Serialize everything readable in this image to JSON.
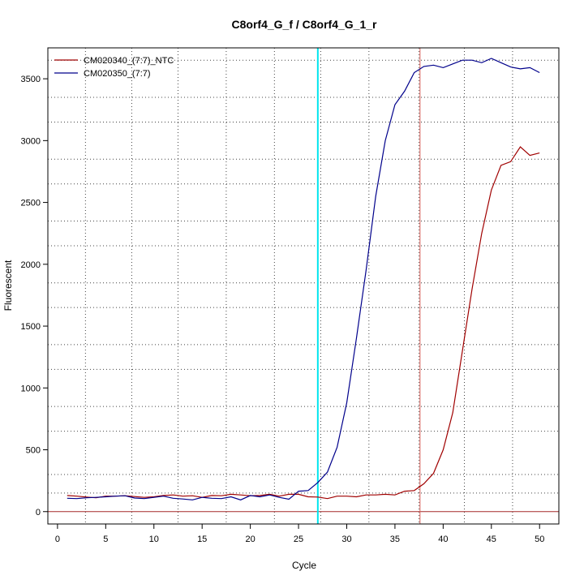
{
  "chart_data": {
    "type": "line",
    "title": "C8orf4_G_f / C8orf4_G_1_r",
    "xlabel": "Cycle",
    "ylabel": "Fluorescent",
    "xlim": [
      -1,
      52
    ],
    "ylim": [
      -100,
      3750
    ],
    "x_ticks": [
      0,
      5,
      10,
      15,
      20,
      25,
      30,
      35,
      40,
      45,
      50
    ],
    "y_ticks": [
      0,
      500,
      1000,
      1500,
      2000,
      2500,
      3000,
      3500
    ],
    "vertical_grid_x": [
      2.9,
      7.7,
      12.5,
      17.5,
      22.5,
      27.3,
      32.3,
      37.5,
      42.2,
      47.2
    ],
    "horizontal_grid_y": [
      150,
      300,
      650,
      850,
      1150,
      1350,
      1650,
      1850,
      2150,
      2350,
      2650,
      2850,
      3150,
      3350,
      3650
    ],
    "grid": true,
    "legend_position": "top-left",
    "threshold_lines": [
      {
        "x": 27.0,
        "color": "#00e5ee"
      },
      {
        "x": 37.6,
        "color": "#d9605a"
      }
    ],
    "baseline": {
      "y": 0,
      "color": "#a52a2a"
    },
    "series": [
      {
        "name": "CM020340_(7:7)_NTC",
        "color": "#a00000",
        "x": [
          1,
          2,
          3,
          4,
          5,
          6,
          7,
          8,
          9,
          10,
          11,
          12,
          13,
          14,
          15,
          16,
          17,
          18,
          19,
          20,
          21,
          22,
          23,
          24,
          25,
          26,
          27,
          28,
          29,
          30,
          31,
          32,
          33,
          34,
          35,
          36,
          37,
          38,
          39,
          40,
          41,
          42,
          43,
          44,
          45,
          46,
          47,
          48,
          49,
          50
        ],
        "values": [
          130,
          125,
          118,
          112,
          125,
          125,
          128,
          122,
          115,
          120,
          130,
          135,
          125,
          128,
          115,
          130,
          128,
          140,
          135,
          128,
          130,
          140,
          125,
          140,
          140,
          120,
          118,
          105,
          125,
          125,
          120,
          135,
          135,
          140,
          135,
          165,
          170,
          225,
          310,
          500,
          800,
          1300,
          1800,
          2250,
          2600,
          2800,
          2830,
          2950,
          2880,
          2900
        ]
      },
      {
        "name": "CM020350_(7:7)",
        "color": "#00008b",
        "x": [
          1,
          2,
          3,
          4,
          5,
          6,
          7,
          8,
          9,
          10,
          11,
          12,
          13,
          14,
          15,
          16,
          17,
          18,
          19,
          20,
          21,
          22,
          23,
          24,
          25,
          26,
          27,
          28,
          29,
          30,
          31,
          32,
          33,
          34,
          35,
          36,
          37,
          38,
          39,
          40,
          41,
          42,
          43,
          44,
          45,
          46,
          47,
          48,
          49,
          50
        ],
        "values": [
          108,
          105,
          112,
          115,
          120,
          125,
          128,
          110,
          105,
          115,
          125,
          108,
          102,
          95,
          115,
          108,
          105,
          120,
          95,
          130,
          120,
          135,
          115,
          100,
          165,
          170,
          235,
          320,
          520,
          880,
          1400,
          1950,
          2550,
          3000,
          3290,
          3400,
          3550,
          3600,
          3610,
          3590,
          3620,
          3650,
          3650,
          3630,
          3665,
          3630,
          3595,
          3580,
          3590,
          3550
        ]
      }
    ]
  }
}
